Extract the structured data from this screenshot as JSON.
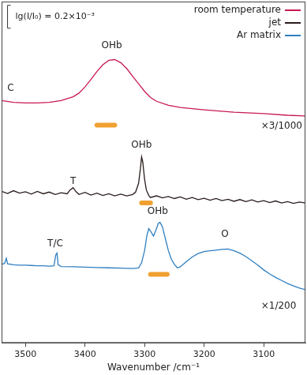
{
  "chart_data": {
    "type": "line",
    "x_label": "Wavenumber /cm⁻¹",
    "xlim": [
      3540,
      3030
    ],
    "xticks": [
      3500,
      3400,
      3300,
      3200,
      3100
    ],
    "ylim": [
      0,
      100
    ],
    "tick_labels": "x",
    "legend": "upper right",
    "series": [
      {
        "name": "room temperature",
        "color": "#c8194f",
        "x": [
          3540,
          3520,
          3500,
          3480,
          3460,
          3440,
          3420,
          3410,
          3400,
          3390,
          3380,
          3370,
          3360,
          3350,
          3340,
          3330,
          3320,
          3310,
          3300,
          3290,
          3280,
          3260,
          3240,
          3200,
          3150,
          3100,
          3060,
          3030
        ],
        "values": [
          71.0,
          70.5,
          70.3,
          70.3,
          70.5,
          71.0,
          72.1,
          73.2,
          75.0,
          77.2,
          79.5,
          81.5,
          82.8,
          83.0,
          82.1,
          80.4,
          78.1,
          75.9,
          73.7,
          71.9,
          70.8,
          69.6,
          69.0,
          68.3,
          67.6,
          67.2,
          66.7,
          66.5
        ]
      },
      {
        "name": "jet",
        "color": "#2a1c1c",
        "x": [
          3540,
          3530,
          3520,
          3510,
          3500,
          3490,
          3480,
          3470,
          3460,
          3450,
          3440,
          3430,
          3425,
          3420,
          3415,
          3410,
          3400,
          3390,
          3380,
          3370,
          3360,
          3350,
          3340,
          3330,
          3320,
          3315,
          3310,
          3307,
          3305,
          3303,
          3300,
          3297,
          3293,
          3290,
          3280,
          3270,
          3260,
          3250,
          3240,
          3230,
          3220,
          3210,
          3200,
          3190,
          3180,
          3170,
          3160,
          3150,
          3140,
          3130,
          3120,
          3110,
          3100,
          3090,
          3080,
          3070,
          3060,
          3050,
          3040,
          3030
        ],
        "values": [
          44.4,
          43.8,
          44.6,
          43.9,
          44.3,
          43.6,
          44.4,
          43.7,
          44.2,
          43.5,
          44.0,
          43.7,
          44.8,
          45.5,
          44.3,
          43.5,
          44.1,
          43.3,
          43.9,
          43.2,
          43.7,
          43.1,
          43.6,
          43.1,
          43.5,
          44.2,
          46.8,
          51.0,
          54.5,
          53.0,
          48.0,
          44.8,
          43.2,
          42.6,
          43.1,
          42.5,
          42.9,
          42.3,
          42.8,
          42.1,
          42.6,
          42.0,
          42.4,
          41.8,
          42.3,
          41.7,
          42.1,
          41.5,
          42.0,
          41.4,
          41.9,
          41.3,
          41.7,
          41.1,
          41.6,
          41.0,
          41.4,
          40.9,
          41.3,
          41.0
        ]
      },
      {
        "name": "Ar matrix",
        "color": "#2f7fc1",
        "x": [
          3540,
          3535,
          3532,
          3530,
          3520,
          3510,
          3500,
          3490,
          3480,
          3470,
          3460,
          3452,
          3449,
          3447,
          3445,
          3440,
          3420,
          3400,
          3380,
          3360,
          3340,
          3320,
          3310,
          3305,
          3300,
          3296,
          3293,
          3289,
          3285,
          3281,
          3277,
          3274,
          3270,
          3265,
          3260,
          3255,
          3250,
          3245,
          3240,
          3230,
          3220,
          3210,
          3200,
          3190,
          3180,
          3170,
          3160,
          3150,
          3140,
          3130,
          3120,
          3110,
          3100,
          3090,
          3080,
          3070,
          3060,
          3050,
          3040,
          3030
        ],
        "values": [
          23.0,
          23.3,
          24.8,
          23.2,
          22.9,
          22.8,
          22.8,
          22.7,
          22.6,
          22.6,
          22.5,
          22.6,
          25.8,
          26.3,
          22.9,
          22.4,
          22.3,
          22.2,
          22.1,
          22.0,
          21.9,
          21.8,
          22.0,
          23.5,
          27.0,
          31.5,
          33.5,
          32.5,
          31.3,
          33.0,
          35.0,
          35.3,
          34.0,
          30.5,
          27.0,
          24.5,
          23.0,
          22.0,
          22.3,
          23.8,
          25.2,
          26.2,
          26.8,
          27.0,
          27.2,
          27.4,
          27.5,
          27.0,
          26.3,
          25.3,
          24.1,
          22.8,
          21.4,
          20.2,
          19.2,
          18.3,
          17.4,
          16.7,
          16.1,
          15.6
        ]
      }
    ],
    "ranges": [
      {
        "x": [
          3380,
          3350
        ],
        "y": 63.8,
        "color": "#f0a030"
      },
      {
        "x": [
          3305,
          3290
        ],
        "y": 41.0,
        "color": "#f0a030"
      },
      {
        "x": [
          3290,
          3262
        ],
        "y": 20.1,
        "color": "#f0a030"
      }
    ],
    "annotations": [
      {
        "text": "C",
        "x": 3525,
        "y": 74.5
      },
      {
        "text": "OHb",
        "x": 3355,
        "y": 87.1
      },
      {
        "text": "×3/1000",
        "x": 3070,
        "y": 63.6
      },
      {
        "text": "T",
        "x": 3420,
        "y": 47.3
      },
      {
        "text": "OHb",
        "x": 3305,
        "y": 58.0
      },
      {
        "text": "T/C",
        "x": 3450,
        "y": 29.0
      },
      {
        "text": "OHb",
        "x": 3278,
        "y": 38.6
      },
      {
        "text": "O",
        "x": 3165,
        "y": 31.9
      },
      {
        "text": "×1/200",
        "x": 3075,
        "y": 10.7
      }
    ],
    "scale_bar": {
      "label": "lg(I/I₀) = 0.2×10⁻³",
      "x": 3530,
      "y": [
        92.2,
        98.9
      ]
    }
  }
}
